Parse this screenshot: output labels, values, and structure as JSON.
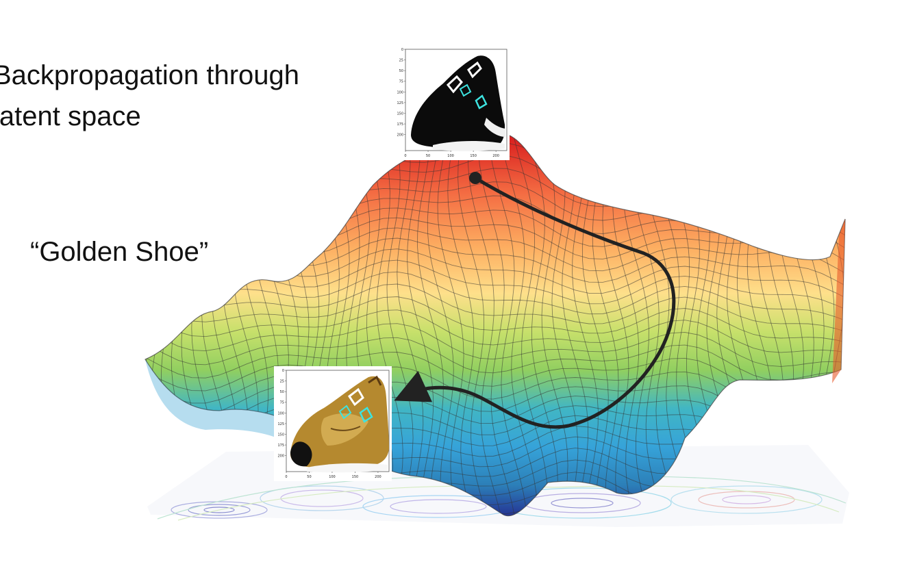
{
  "slide": {
    "caption_line1": "Backpropagation through",
    "caption_line2": "latent space",
    "label_golden": "“Golden Shoe”"
  },
  "surface": {
    "colormap": [
      "#d7191c",
      "#f46d43",
      "#fdae61",
      "#fee08b",
      "#d9ef8b",
      "#91cf60",
      "#41b6c4",
      "#2c7fb8",
      "#253494"
    ]
  },
  "inset_top": {
    "y_ticks": [
      "0",
      "25",
      "50",
      "75",
      "100",
      "125",
      "150",
      "175",
      "200"
    ],
    "x_ticks": [
      "0",
      "50",
      "100",
      "150",
      "200"
    ]
  },
  "inset_bottom": {
    "y_ticks": [
      "0",
      "25",
      "50",
      "75",
      "100",
      "125",
      "150",
      "175",
      "200"
    ],
    "x_ticks": [
      "0",
      "50",
      "100",
      "150",
      "200"
    ]
  }
}
